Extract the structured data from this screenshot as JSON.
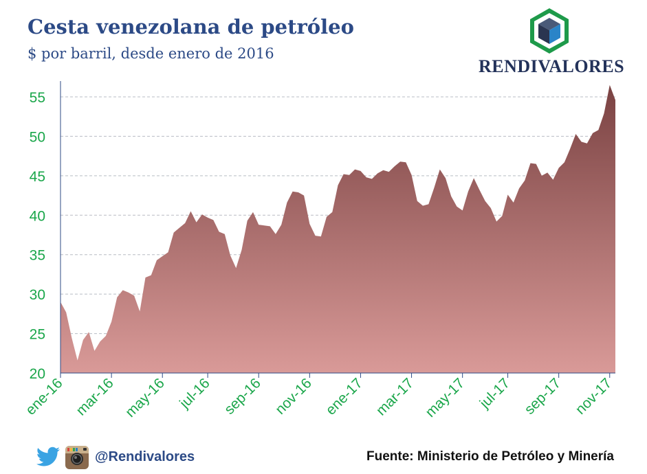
{
  "header": {
    "title": "Cesta venezolana de petróleo",
    "subtitle": "$ por barril, desde enero de 2016"
  },
  "brand": {
    "name": "RENDIVALORES"
  },
  "footer": {
    "handle": "@Rendivalores",
    "source": "Fuente: Ministerio de Petróleo y Minería"
  },
  "icons": {
    "logo": "cube-hexagon-logo",
    "twitter": "twitter-bird-icon",
    "instagram": "instagram-camera-icon"
  },
  "colors": {
    "title": "#2c4a86",
    "axis_ticks": "#1aa64a",
    "area_top": "#7a4242",
    "area_bottom": "#d99a98",
    "logo_green": "#1e9a4a",
    "logo_blue": "#2a84c8"
  },
  "chart_data": {
    "type": "area",
    "title": "Cesta venezolana de petróleo",
    "ylabel": "",
    "xlabel": "",
    "ylim": [
      20,
      57
    ],
    "yticks": [
      20,
      25,
      30,
      35,
      40,
      45,
      50,
      55
    ],
    "grid": "horizontal dashed",
    "x_ticks": [
      "ene-16",
      "mar-16",
      "may-16",
      "jul-16",
      "sep-16",
      "nov-16",
      "ene-17",
      "mar-17",
      "may-17",
      "jul-17",
      "sep-17",
      "nov-17"
    ],
    "x_tick_week_index": [
      0,
      9,
      18,
      26,
      35,
      44,
      53,
      62,
      71,
      79,
      88,
      97
    ],
    "x_unit": "weeks since ene-16",
    "values": [
      29.0,
      27.7,
      24.4,
      21.6,
      24.2,
      25.2,
      22.8,
      24.0,
      24.7,
      26.5,
      29.6,
      30.5,
      30.2,
      29.8,
      27.8,
      32.1,
      32.4,
      34.3,
      34.8,
      35.3,
      37.8,
      38.4,
      39.0,
      40.5,
      39.1,
      40.1,
      39.7,
      39.4,
      37.9,
      37.6,
      34.9,
      33.3,
      35.6,
      39.3,
      40.4,
      38.8,
      38.7,
      38.6,
      37.6,
      38.8,
      41.6,
      43.0,
      42.9,
      42.5,
      38.9,
      37.4,
      37.3,
      39.8,
      40.4,
      43.8,
      45.2,
      45.1,
      45.8,
      45.6,
      44.8,
      44.6,
      45.3,
      45.7,
      45.5,
      46.2,
      46.8,
      46.7,
      45.1,
      41.8,
      41.2,
      41.4,
      43.5,
      45.8,
      44.7,
      42.4,
      41.1,
      40.6,
      43.0,
      44.7,
      43.2,
      41.8,
      40.9,
      39.2,
      39.9,
      42.6,
      41.6,
      43.4,
      44.4,
      46.6,
      46.5,
      45.0,
      45.4,
      44.5,
      46.0,
      46.7,
      48.4,
      50.3,
      49.3,
      49.1,
      50.4,
      50.8,
      52.9,
      56.5,
      54.6
    ]
  }
}
